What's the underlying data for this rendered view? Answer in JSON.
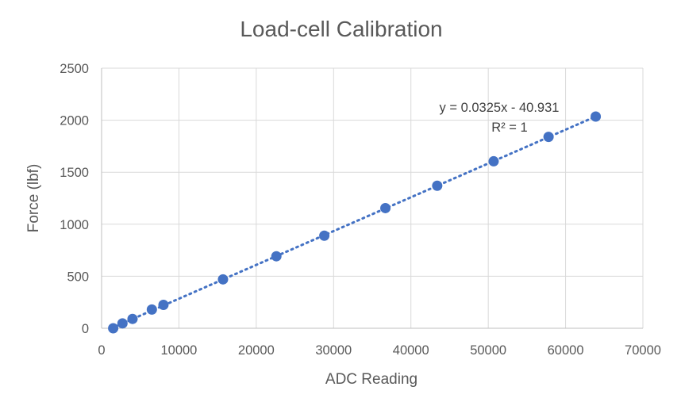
{
  "chart_data": {
    "type": "scatter",
    "title": "Load-cell Calibration",
    "xlabel": "ADC Reading",
    "ylabel": "Force (lbf)",
    "xlim": [
      0,
      70000
    ],
    "ylim": [
      0,
      2500
    ],
    "x_ticks": [
      "0",
      "10000",
      "20000",
      "30000",
      "40000",
      "50000",
      "60000",
      "70000"
    ],
    "y_ticks": [
      "0",
      "500",
      "1000",
      "1500",
      "2000",
      "2500"
    ],
    "grid": true,
    "legend": "none",
    "marker_color": "#4472C4",
    "trendline_color": "#4472C4",
    "series": [
      {
        "x": [
          1500,
          2700,
          4000,
          6500,
          8000,
          15700,
          22600,
          28800,
          36700,
          43400,
          50700,
          57800,
          63900
        ],
        "y": [
          0,
          47,
          90,
          180,
          225,
          470,
          692,
          890,
          1155,
          1370,
          1605,
          1840,
          2035
        ]
      }
    ],
    "trendline": {
      "type": "linear",
      "slope": 0.0325,
      "intercept": -40.931,
      "x_range": [
        1500,
        63900
      ],
      "equation": "y = 0.0325x - 40.931",
      "r_squared": "R² = 1"
    }
  }
}
